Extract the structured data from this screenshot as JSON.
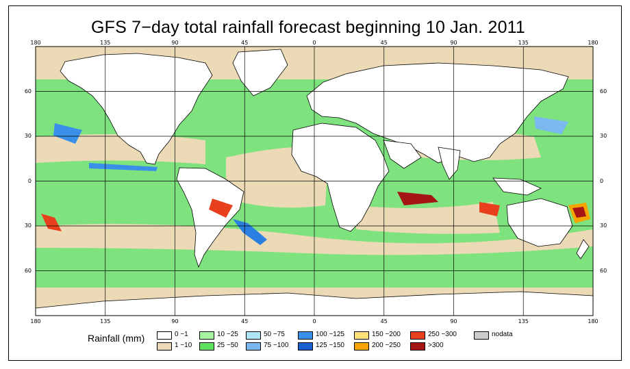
{
  "title": "GFS 7−day total rainfall forecast beginning 10 Jan. 2011",
  "map": {
    "projection": "equirectangular",
    "lon_range": [
      -180,
      180
    ],
    "lat_range": [
      -90,
      90
    ],
    "grid_spacing_lon": 45,
    "grid_spacing_lat": 30,
    "lon_ticks": [
      "180",
      "135",
      "90",
      "45",
      "0",
      "45",
      "90",
      "135",
      "180"
    ],
    "lat_ticks": [
      "60",
      "30",
      "0",
      "30",
      "60"
    ],
    "ocean_color": "#7ee37e",
    "land_color": "#ffffff",
    "dry_color": "#ecd9b5",
    "heavy_colors": [
      "#2b7fe0",
      "#e8401c",
      "#a51515",
      "#f5a400"
    ]
  },
  "legend": {
    "title": "Rainfall (mm)",
    "items": [
      {
        "label": "0 −1",
        "color": "#ffffff"
      },
      {
        "label": "1 −10",
        "color": "#ecd9b5"
      },
      {
        "label": "10 −25",
        "color": "#a6f3a1"
      },
      {
        "label": "25 −50",
        "color": "#5fe05f"
      },
      {
        "label": "50 −75",
        "color": "#aee6f8"
      },
      {
        "label": "75 −100",
        "color": "#7ab8ef"
      },
      {
        "label": "100 −125",
        "color": "#3a8fe8"
      },
      {
        "label": "125 −150",
        "color": "#1a5fd0"
      },
      {
        "label": "150 −200",
        "color": "#ffe07a"
      },
      {
        "label": "200 −250",
        "color": "#f5a400"
      },
      {
        "label": "250 −300",
        "color": "#e8401c"
      },
      {
        "label": ">300",
        "color": "#a51515"
      },
      {
        "label": "nodata",
        "color": "#cccccc"
      }
    ]
  }
}
